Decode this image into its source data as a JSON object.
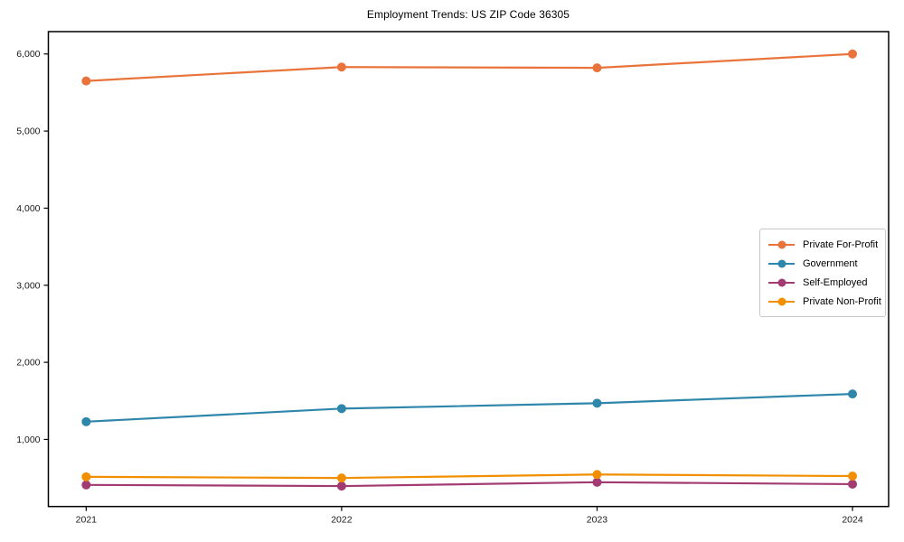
{
  "chart_data": {
    "type": "line",
    "title": "Employment Trends: US ZIP Code 36305",
    "categories": [
      "2021",
      "2022",
      "2023",
      "2024"
    ],
    "series": [
      {
        "name": "Private For-Profit",
        "color": "#E8743B",
        "values": [
          5650,
          5830,
          5820,
          6000
        ]
      },
      {
        "name": "Government",
        "color": "#2E86AB",
        "values": [
          1230,
          1400,
          1470,
          1590
        ]
      },
      {
        "name": "Self-Employed",
        "color": "#A23B72",
        "values": [
          410,
          395,
          445,
          420
        ]
      },
      {
        "name": "Private Non-Profit",
        "color": "#F18F01",
        "values": [
          515,
          500,
          545,
          525
        ]
      }
    ],
    "xlabel": "",
    "ylabel": "",
    "ylim": [
      130,
      6290
    ],
    "yticks": [
      1000,
      2000,
      3000,
      4000,
      5000,
      6000
    ],
    "ytick_labels": [
      "1,000",
      "2,000",
      "3,000",
      "4,000",
      "5,000",
      "6,000"
    ],
    "grid": false,
    "legend_position": "center-right",
    "marker": "circle",
    "line_width": 2.2,
    "marker_radius": 5,
    "axis_color": "#000000",
    "tick_label_color": "#1a1a1a"
  }
}
